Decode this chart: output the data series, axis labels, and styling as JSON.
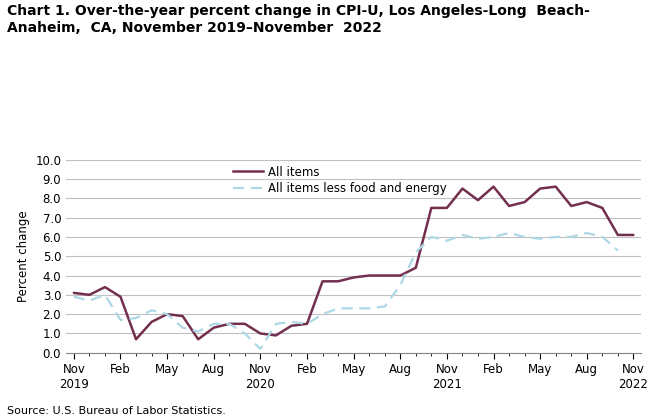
{
  "title": "Chart 1. Over-the-year percent change in CPI-U, Los Angeles-Long  Beach-\nAnaheim,  CA, November 2019–November  2022",
  "ylabel": "Percent change",
  "source": "Source: U.S. Bureau of Labor Statistics.",
  "legend_all": "All items",
  "legend_core": "All items less food and energy",
  "ylim": [
    0.0,
    10.0
  ],
  "yticks": [
    0.0,
    1.0,
    2.0,
    3.0,
    4.0,
    5.0,
    6.0,
    7.0,
    8.0,
    9.0,
    10.0
  ],
  "all_items": [
    3.1,
    3.0,
    3.4,
    2.9,
    0.7,
    1.6,
    2.0,
    1.9,
    0.7,
    1.3,
    1.5,
    1.5,
    1.0,
    0.9,
    1.4,
    1.5,
    3.7,
    3.7,
    3.9,
    4.0,
    4.0,
    4.0,
    4.4,
    7.5,
    7.5,
    8.5,
    7.9,
    8.6,
    7.6,
    7.8,
    8.5,
    8.6,
    7.6,
    7.8,
    7.5,
    6.1,
    6.1
  ],
  "core_items": [
    2.9,
    2.7,
    3.0,
    1.7,
    1.8,
    2.2,
    2.0,
    1.3,
    1.1,
    1.5,
    1.5,
    1.0,
    0.2,
    1.5,
    1.6,
    1.5,
    2.0,
    2.3,
    2.3,
    2.3,
    2.4,
    3.5,
    5.2,
    6.0,
    5.8,
    6.1,
    5.9,
    6.0,
    6.2,
    6.0,
    5.9,
    6.0,
    6.0,
    6.2,
    6.0,
    5.3,
    null
  ],
  "all_items_color": "#722F4E",
  "core_items_color": "#ADD8E6",
  "background_color": "#FFFFFF",
  "grid_color": "#C0C0C0",
  "xtick_positions": [
    0,
    3,
    6,
    9,
    12,
    15,
    18,
    21,
    24,
    27,
    30,
    33,
    36
  ],
  "xtick_labels": [
    "Nov\n2019",
    "Feb",
    "May",
    "Aug",
    "Nov\n2020",
    "Feb",
    "May",
    "Aug",
    "Nov\n2021",
    "Feb",
    "May",
    "Aug",
    "Nov\n2022"
  ]
}
